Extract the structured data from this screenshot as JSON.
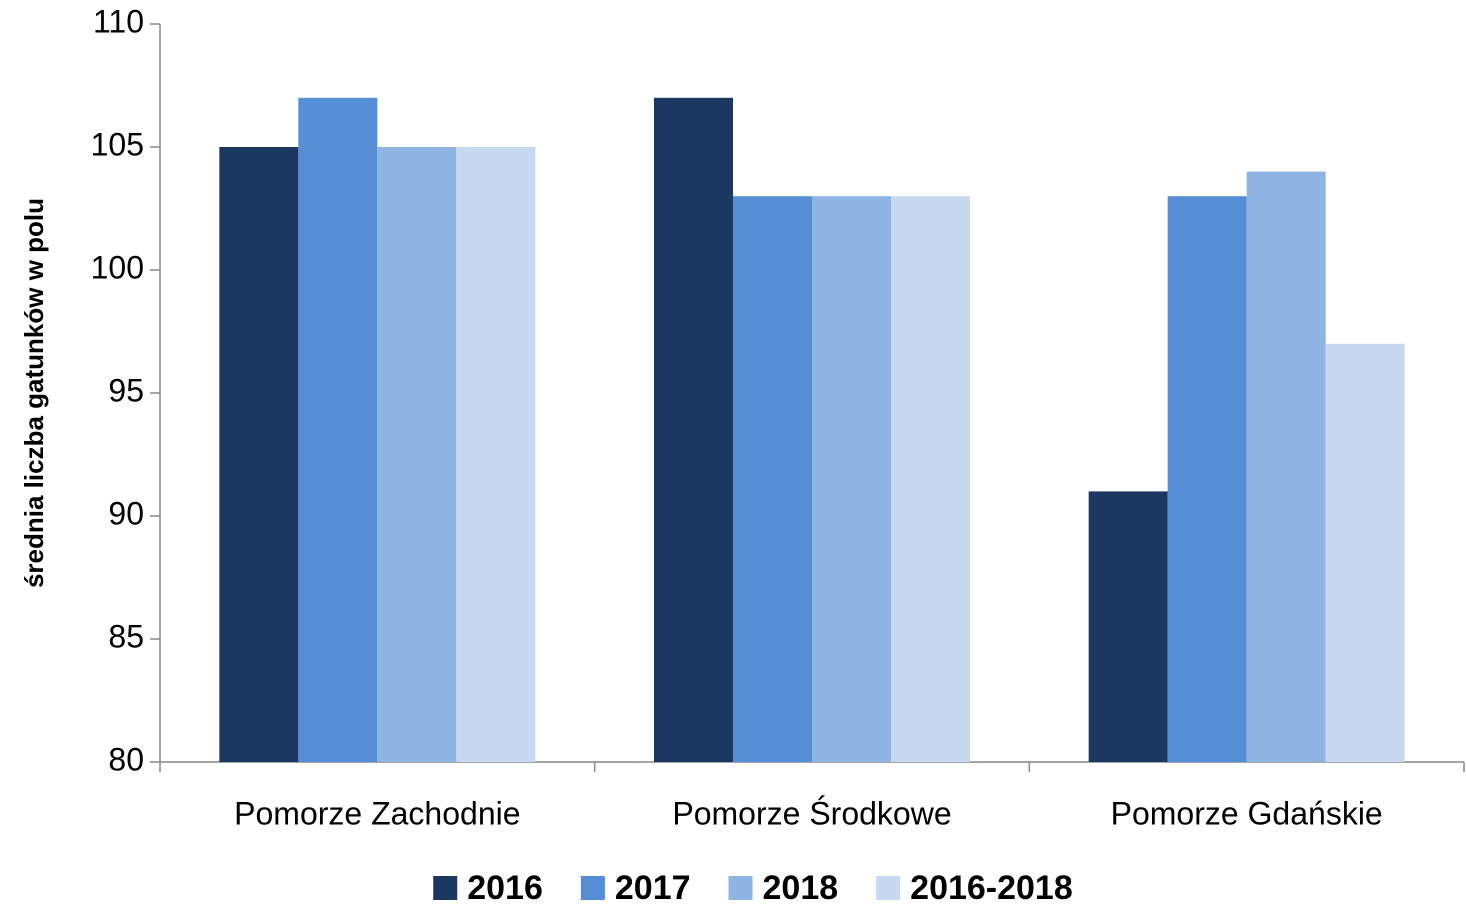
{
  "chart_data": {
    "type": "bar",
    "y_label": "średnia liczba gatunków w polu",
    "categories": [
      "Pomorze Zachodnie",
      "Pomorze Środkowe",
      "Pomorze Gdańskie"
    ],
    "series": [
      {
        "name": "2016",
        "color": "#1b3860",
        "values": [
          105,
          107,
          91
        ]
      },
      {
        "name": "2017",
        "color": "#558ed5",
        "values": [
          107,
          103,
          103
        ]
      },
      {
        "name": "2018",
        "color": "#8eb4e3",
        "values": [
          105,
          103,
          104
        ]
      },
      {
        "name": "2016-2018",
        "color": "#c6d9f1",
        "values": [
          105,
          103,
          97
        ]
      }
    ],
    "ylim": [
      80,
      110
    ],
    "yticks": [
      80,
      85,
      90,
      95,
      100,
      105,
      110
    ],
    "grid": false,
    "legend": "bottom"
  }
}
